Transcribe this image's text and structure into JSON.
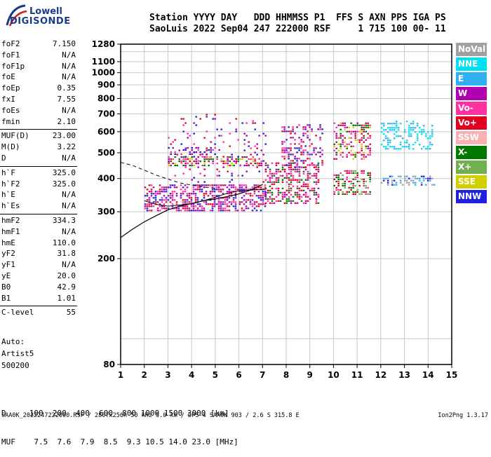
{
  "logo": {
    "line1": "Lowell",
    "line2": "DIGISONDE"
  },
  "header": {
    "line1": "Station YYYY DAY   DDD HHMMSS P1  FFS S AXN PPS IGA PS",
    "line2": "SaoLuis 2022 Sep04 247 222000 RSF     1 715 100 00- 11"
  },
  "params": [
    {
      "k": "foF2",
      "v": "7.150"
    },
    {
      "k": "foF1",
      "v": "N/A"
    },
    {
      "k": "foF1p",
      "v": "N/A"
    },
    {
      "k": "foE",
      "v": "N/A"
    },
    {
      "k": "foEp",
      "v": "0.35"
    },
    {
      "k": "fxI",
      "v": "7.55"
    },
    {
      "k": "foEs",
      "v": "N/A"
    },
    {
      "k": "fmin",
      "v": "2.10"
    },
    {
      "k": "MUF(D)",
      "v": "23.00"
    },
    {
      "k": "M(D)",
      "v": "3.22"
    },
    {
      "k": "D",
      "v": "N/A"
    },
    {
      "k": "h`F",
      "v": "325.0"
    },
    {
      "k": "h`F2",
      "v": "325.0"
    },
    {
      "k": "h`E",
      "v": "N/A"
    },
    {
      "k": "h`Es",
      "v": "N/A"
    },
    {
      "k": "hmF2",
      "v": "334.3"
    },
    {
      "k": "hmF1",
      "v": "N/A"
    },
    {
      "k": "hmE",
      "v": "110.0"
    },
    {
      "k": "yF2",
      "v": "31.8"
    },
    {
      "k": "yF1",
      "v": "N/A"
    },
    {
      "k": "yE",
      "v": "20.0"
    },
    {
      "k": "B0",
      "v": "42.9"
    },
    {
      "k": "B1",
      "v": "1.01"
    },
    {
      "k": "C-level",
      "v": "55"
    }
  ],
  "auto": [
    "Auto:",
    "Artist5",
    "500200"
  ],
  "legend": [
    {
      "label": "NoVal",
      "color": "#a0a0a0"
    },
    {
      "label": "NNE",
      "color": "#00e0f0"
    },
    {
      "label": "E",
      "color": "#30b0f0"
    },
    {
      "label": "W",
      "color": "#b000b0"
    },
    {
      "label": "Vo-",
      "color": "#ff30a0"
    },
    {
      "label": "Vo+",
      "color": "#e00020"
    },
    {
      "label": "SSW",
      "color": "#f8b0b0"
    },
    {
      "label": "X-",
      "color": "#007800"
    },
    {
      "label": "X+",
      "color": "#70b050"
    },
    {
      "label": "SSE",
      "color": "#d0d000"
    },
    {
      "label": "NNW",
      "color": "#2020e0"
    }
  ],
  "dmuf": {
    "d_row": "D     100  200  400  600  800 1000 1500 3000 [km]",
    "muf_row": "MUF    7.5  7.6  7.9  8.5  9.3 10.5 14.0 23.0 [MHz]"
  },
  "footer": {
    "left": "SAA0K_2022247222000.RSF / 280fx256h 50 kHz 5.0 km / DPS-4 SAA0K 903 / 2.6 S 315.8 E",
    "right": "Ion2Png 1.3.17"
  },
  "chart_data": {
    "type": "scatter",
    "xlabel": "",
    "ylabel": "",
    "xlim": [
      1,
      15
    ],
    "ylim": [
      80,
      1280
    ],
    "x_ticks": [
      1,
      2,
      3,
      4,
      5,
      6,
      7,
      8,
      9,
      10,
      11,
      12,
      13,
      14,
      15
    ],
    "y_tick_labels": [
      80,
      200,
      300,
      400,
      500,
      600,
      700,
      800,
      900,
      1000,
      1100,
      1280
    ],
    "y_label_values": [
      80,
      200,
      300,
      400,
      500,
      600,
      700,
      800,
      900,
      1000,
      1100,
      1280
    ],
    "clusters": [
      {
        "name": "o-trace F2 main",
        "x": [
          2.0,
          7.1
        ],
        "y": [
          300,
          380
        ],
        "colors": [
          "#ff30a0",
          "#e00020",
          "#b000b0",
          "#2020e0"
        ],
        "density": 0.55
      },
      {
        "name": "o-trace F2 extension",
        "x": [
          7.1,
          9.4
        ],
        "y": [
          320,
          460
        ],
        "colors": [
          "#ff30a0",
          "#e00020",
          "#b000b0",
          "#007800"
        ],
        "density": 0.45
      },
      {
        "name": "multi-hop band 450-480",
        "x": [
          3.0,
          7.0
        ],
        "y": [
          450,
          485
        ],
        "colors": [
          "#d0d000",
          "#e00020",
          "#ff30a0",
          "#007800",
          "#b000b0"
        ],
        "density": 0.5
      },
      {
        "name": "multi-hop band 500-520",
        "x": [
          3.0,
          5.2
        ],
        "y": [
          495,
          525
        ],
        "colors": [
          "#b000b0",
          "#ff30a0",
          "#2020e0"
        ],
        "density": 0.35
      },
      {
        "name": "columns 3-7",
        "x": [
          3.0,
          7.1
        ],
        "y": [
          390,
          700
        ],
        "colors": [
          "#b000b0",
          "#ff30a0",
          "#2020e0",
          "#e00020"
        ],
        "density": 0.08
      },
      {
        "name": "patch 8-9.5 500-650",
        "x": [
          7.8,
          9.5
        ],
        "y": [
          440,
          640
        ],
        "colors": [
          "#b000b0",
          "#ff30a0",
          "#2020e0",
          "#e00020"
        ],
        "density": 0.3
      },
      {
        "name": "patch 10-11.5 350-430",
        "x": [
          10.0,
          11.6
        ],
        "y": [
          350,
          430
        ],
        "colors": [
          "#ff30a0",
          "#007800",
          "#70b050",
          "#e00020"
        ],
        "density": 0.5
      },
      {
        "name": "patch 10-11.5 480-650",
        "x": [
          10.0,
          11.6
        ],
        "y": [
          470,
          650
        ],
        "colors": [
          "#d0d000",
          "#ff30a0",
          "#b000b0",
          "#e00020",
          "#007800"
        ],
        "density": 0.4
      },
      {
        "name": "cyan NNE 12-14",
        "x": [
          12.0,
          14.2
        ],
        "y": [
          520,
          660
        ],
        "colors": [
          "#00e0f0",
          "#30b0f0"
        ],
        "density": 0.35
      },
      {
        "name": "gray tail 12-14",
        "x": [
          12.0,
          14.3
        ],
        "y": [
          380,
          410
        ],
        "colors": [
          "#a0a0a0",
          "#2020e0",
          "#30b0f0"
        ],
        "density": 0.35
      }
    ],
    "o_trace_curve": {
      "x": [
        1.0,
        1.5,
        2.0,
        2.5,
        3.0,
        3.5,
        4.0,
        4.5,
        5.0,
        5.5,
        6.0,
        6.5,
        7.0
      ],
      "y": [
        240,
        258,
        275,
        290,
        305,
        315,
        322,
        330,
        335,
        342,
        350,
        362,
        380
      ]
    },
    "x_trace_curve": {
      "x": [
        2.0,
        2.5,
        3.0,
        3.5,
        4.0,
        4.5,
        5.0,
        5.5,
        6.0,
        6.5,
        7.1
      ],
      "y": [
        330,
        320,
        315,
        318,
        322,
        330,
        340,
        352,
        360,
        362,
        365
      ]
    },
    "dashed_curve": {
      "x": [
        1.0,
        1.5,
        2.0,
        2.5,
        3.0,
        3.5,
        4.0,
        4.5,
        5.0
      ],
      "y": [
        460,
        448,
        430,
        412,
        398,
        385,
        378,
        372,
        368
      ]
    }
  }
}
